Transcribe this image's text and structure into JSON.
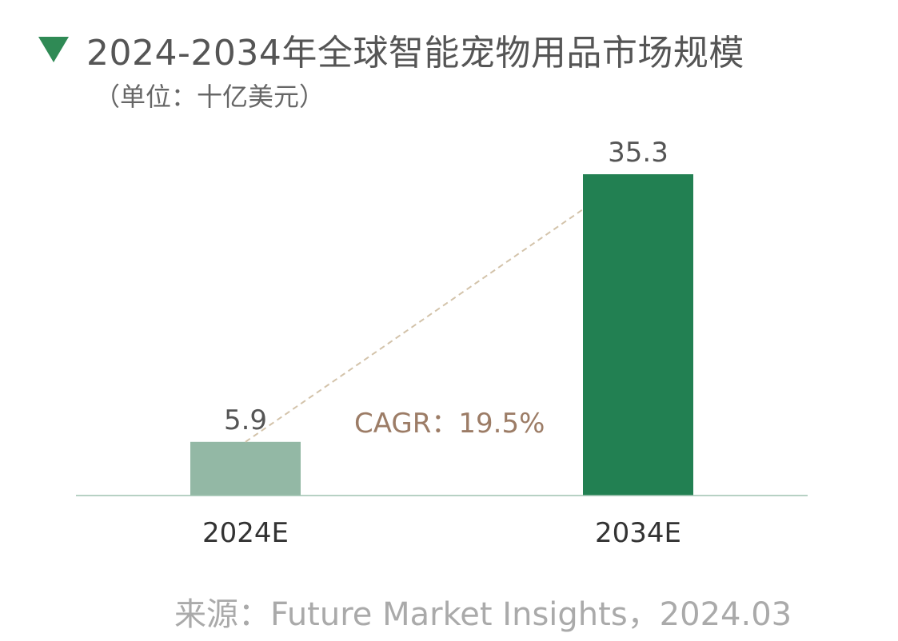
{
  "header": {
    "title": "2024-2034年全球智能宠物用品市场规模",
    "unit": "（单位：十亿美元）",
    "marker_icon": "triangle-down-icon",
    "marker_color": "#2f8a55"
  },
  "chart_data": {
    "type": "bar",
    "categories": [
      "2024E",
      "2034E"
    ],
    "values": [
      5.9,
      35.3
    ],
    "value_labels": [
      "5.9",
      "35.3"
    ],
    "colors": [
      "#93b8a5",
      "#228052"
    ],
    "ylim": [
      0,
      35.3
    ],
    "grid": false,
    "annotation": "CAGR：19.5%",
    "annotation_color": "#9c7c66",
    "trend_line_color": "#d3c3aa"
  },
  "footer": {
    "source": "来源：Future Market Insights，2024.03"
  }
}
